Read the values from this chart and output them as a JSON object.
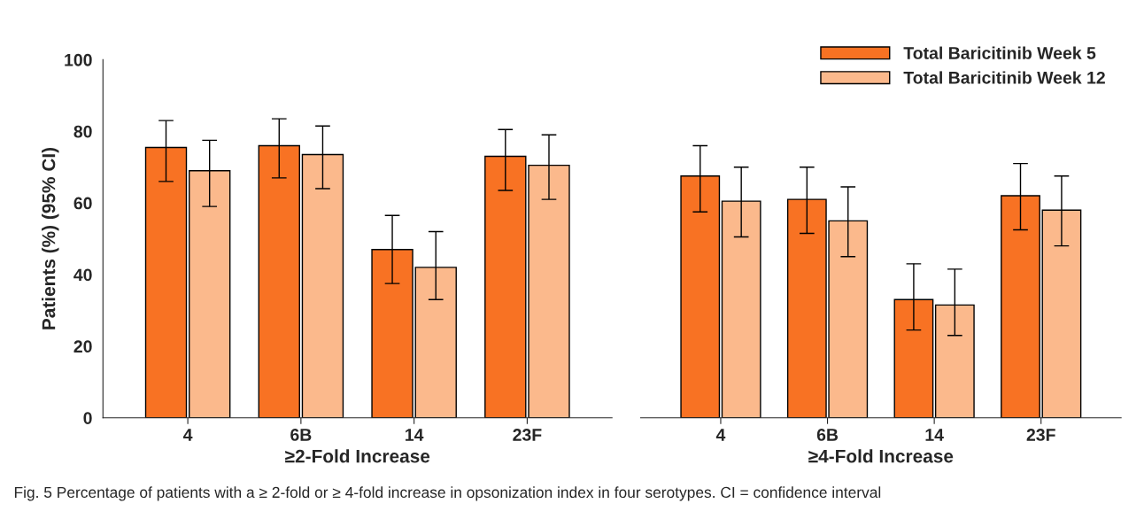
{
  "chart_data": [
    {
      "type": "bar",
      "ylabel": "Patients (%) (95% CI)",
      "xlabel": "≥2-Fold Increase",
      "categories": [
        "4",
        "6B",
        "14",
        "23F"
      ],
      "ylim": [
        0,
        100
      ],
      "yticks": [
        0,
        20,
        40,
        60,
        80,
        100
      ],
      "grid": false,
      "series": [
        {
          "color": "#f87223",
          "values": [
            75.5,
            76,
            47,
            73
          ],
          "errors": [
            [
              66,
              83
            ],
            [
              67,
              83.5
            ],
            [
              37.5,
              56.5
            ],
            [
              63.5,
              80.5
            ]
          ]
        },
        {
          "color": "#fbb98c",
          "values": [
            69,
            73.5,
            42,
            70.5
          ],
          "errors": [
            [
              59,
              77.5
            ],
            [
              64,
              81.5
            ],
            [
              33,
              52
            ],
            [
              61,
              79
            ]
          ]
        }
      ],
      "annotations": [
        "Fig. 5 Percentage of patients with a ≥ 2-fold or ≥ 4-fold increase in opsonization index in four serotypes. CI = confidence interval"
      ]
    },
    {
      "type": "bar",
      "xlabel": "≥4-Fold Increase",
      "categories": [
        "4",
        "6B",
        "14",
        "23F"
      ],
      "ylim": [
        0,
        100
      ],
      "tick_labels": "x",
      "grid": false,
      "legend": "top right",
      "series": [
        {
          "name": "Total Baricitinib Week 5",
          "color": "#f87223",
          "values": [
            67.5,
            61,
            33,
            62
          ],
          "errors": [
            [
              57.5,
              76
            ],
            [
              51.5,
              70
            ],
            [
              24.5,
              43
            ],
            [
              52.5,
              71
            ]
          ]
        },
        {
          "name": "Total Baricitinib Week 12",
          "color": "#fbb98c",
          "values": [
            60.5,
            55,
            31.5,
            58
          ],
          "errors": [
            [
              50.5,
              70
            ],
            [
              45,
              64.5
            ],
            [
              23,
              41.5
            ],
            [
              48,
              67.5
            ]
          ]
        }
      ]
    }
  ]
}
